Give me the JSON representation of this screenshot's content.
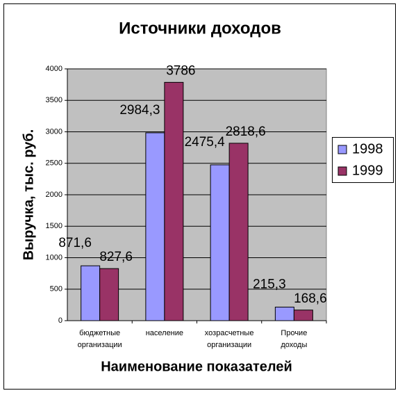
{
  "chart_data": {
    "type": "bar",
    "title": "Источники доходов",
    "x_label": "Наименование показателей",
    "y_label": "Выручка, тыс. руб.",
    "categories": [
      [
        "бюджетные",
        "организации"
      ],
      [
        "население"
      ],
      [
        "хозрасчетные",
        "организации"
      ],
      [
        "Прочие",
        "доходы"
      ]
    ],
    "series": [
      {
        "name": "1998",
        "color": "#9999ff",
        "values": [
          871.6,
          2984.3,
          2475.4,
          215.3
        ],
        "value_labels": [
          "871,6",
          "2984,3",
          "2475,4",
          "215,3"
        ]
      },
      {
        "name": "1999",
        "color": "#993366",
        "values": [
          827.6,
          3786,
          2818.6,
          168.6
        ],
        "value_labels": [
          "827,6",
          "3786",
          "2818,6",
          "168,6"
        ]
      }
    ],
    "ylim": [
      0,
      4000
    ],
    "yticks": [
      0,
      500,
      1000,
      1500,
      2000,
      2500,
      3000,
      3500,
      4000
    ],
    "grid": true,
    "legend": "right",
    "plot_background": "#c0c0c0"
  }
}
